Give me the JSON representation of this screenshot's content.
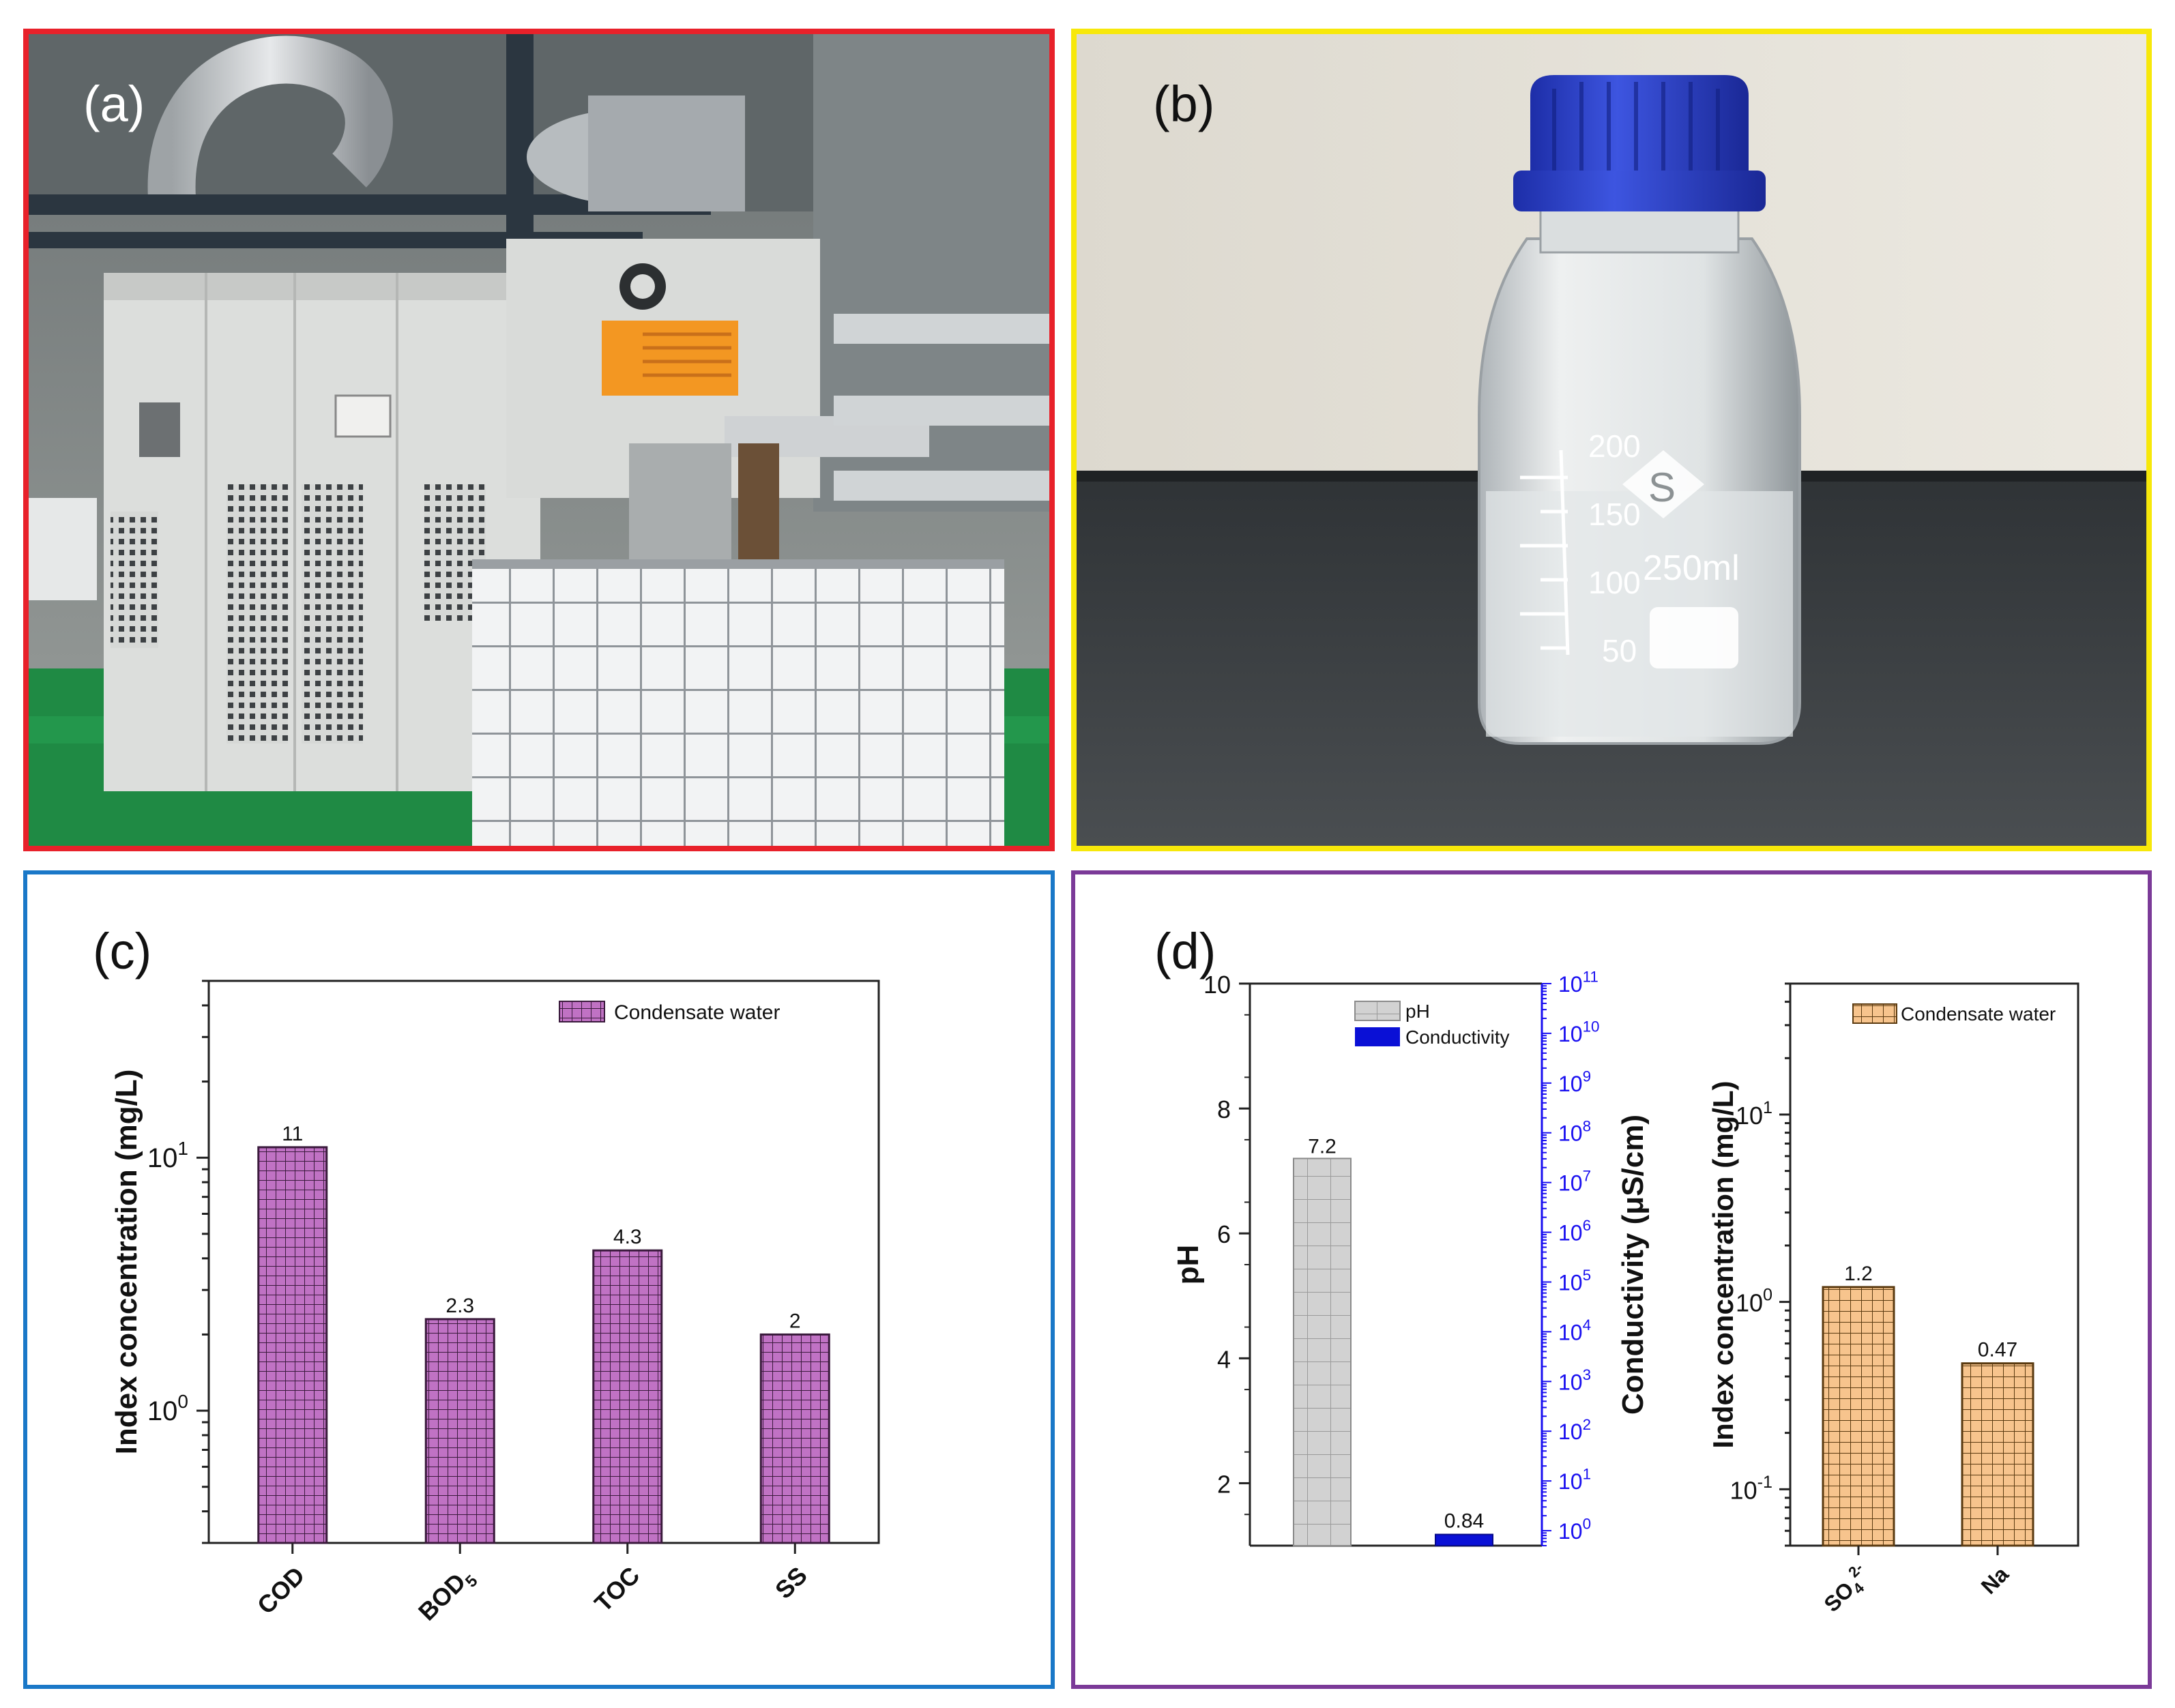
{
  "panels": {
    "a": {
      "label": "(a)"
    },
    "b": {
      "label": "(b)",
      "bottle": {
        "mark_200": "200",
        "mark_150": "150",
        "mark_100": "100",
        "mark_50": "50",
        "volume": "250ml",
        "logo": "S"
      }
    },
    "c": {
      "label": "(c)"
    },
    "d": {
      "label": "(d)"
    }
  },
  "colors": {
    "panel_a_border": "#e8212a",
    "panel_b_border": "#f7e80a",
    "panel_c_border": "#1a78c8",
    "panel_d_border": "#7b3a98",
    "condensate_c": "#c072c4",
    "ph_bar": "#d2d2d2",
    "conductivity_bar": "#0a10d6",
    "condensate_d": "#f7c48d",
    "blue_axis": "#1a10f0"
  },
  "chart_data": [
    {
      "type": "bar",
      "panel": "(c)",
      "ylabel": "Index concentration (mg/L)",
      "yscale": "log",
      "ylim": [
        0.3,
        50
      ],
      "categories": [
        "COD",
        "BOD5",
        "TOC",
        "SS"
      ],
      "series": [
        {
          "name": "Condensate water",
          "values": [
            11,
            2.3,
            4.3,
            2
          ]
        }
      ],
      "data_labels": [
        "11",
        "2.3",
        "4.3",
        "2"
      ],
      "legend": "top-right",
      "yticks": [
        "10^0",
        "10^1"
      ]
    },
    {
      "type": "bar",
      "panel": "(d) left",
      "ylabel": "pH",
      "y2label": "Conductivity (μS/cm)",
      "ylim": [
        1,
        10
      ],
      "y2scale": "log",
      "y2lim": [
        0.5,
        100000000000.0
      ],
      "yticks": [
        2,
        4,
        6,
        8,
        10
      ],
      "y2ticks": [
        "10^0",
        "10^1",
        "10^2",
        "10^3",
        "10^4",
        "10^5",
        "10^6",
        "10^7",
        "10^8",
        "10^9",
        "10^10",
        "10^11"
      ],
      "series": [
        {
          "name": "pH",
          "values": [
            7.2
          ],
          "axis": "left"
        },
        {
          "name": "Conductivity",
          "values": [
            0.84
          ],
          "axis": "right"
        }
      ],
      "data_labels": [
        "7.2",
        "0.84"
      ],
      "legend": "top-right"
    },
    {
      "type": "bar",
      "panel": "(d) right",
      "ylabel": "Index concentration (mg/L)",
      "yscale": "log",
      "ylim": [
        0.05,
        50
      ],
      "categories": [
        "SO4 2-",
        "Na"
      ],
      "series": [
        {
          "name": "Condensate water",
          "values": [
            1.2,
            0.47
          ]
        }
      ],
      "data_labels": [
        "1.2",
        "0.47"
      ],
      "legend": "top-right",
      "yticks": [
        "10^-1",
        "10^0",
        "10^1"
      ]
    }
  ]
}
